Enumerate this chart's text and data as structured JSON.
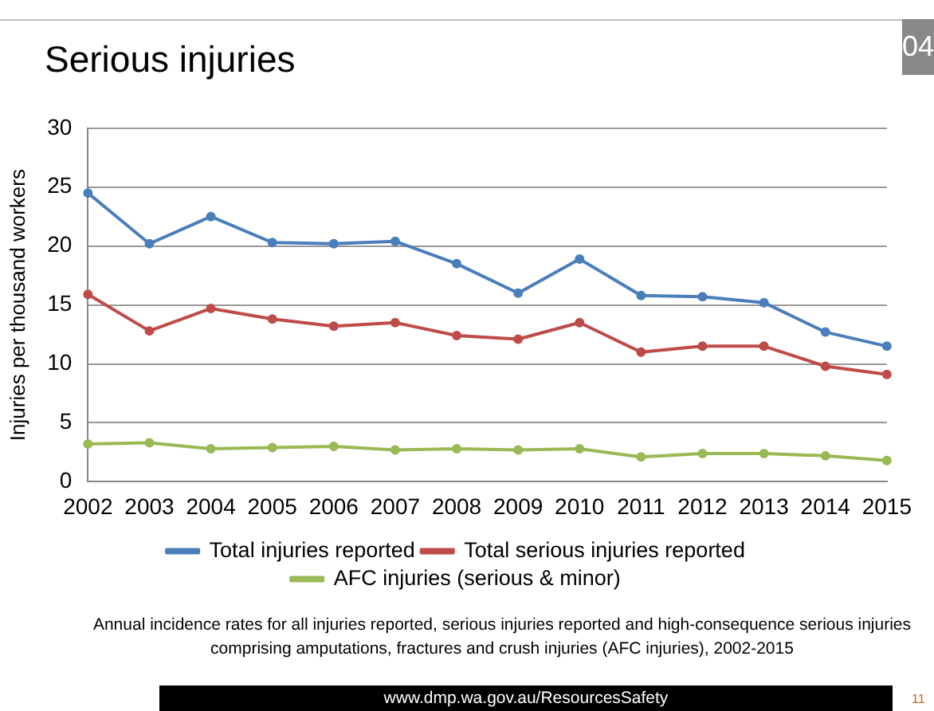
{
  "chart_data": {
    "type": "line",
    "title": "Serious injuries",
    "ylabel": "Injuries per thousand workers",
    "categories": [
      "2002",
      "2003",
      "2004",
      "2005",
      "2006",
      "2007",
      "2008",
      "2009",
      "2010",
      "2011",
      "2012",
      "2013",
      "2014",
      "2015"
    ],
    "series": [
      {
        "name": "Total injuries reported",
        "color": "#4a7ebb",
        "values": [
          24.5,
          20.2,
          22.5,
          20.3,
          20.2,
          20.4,
          18.5,
          16.0,
          18.9,
          15.8,
          15.7,
          15.2,
          12.7,
          11.5
        ]
      },
      {
        "name": "Total serious injuries reported",
        "color": "#be4b48",
        "values": [
          15.9,
          12.8,
          14.7,
          13.8,
          13.2,
          13.5,
          12.4,
          12.1,
          13.5,
          11.0,
          11.5,
          11.5,
          9.8,
          9.1
        ]
      },
      {
        "name": "AFC injuries (serious & minor)",
        "color": "#98b954",
        "values": [
          3.2,
          3.3,
          2.8,
          2.9,
          3.0,
          2.7,
          2.8,
          2.7,
          2.8,
          2.1,
          2.4,
          2.4,
          2.2,
          1.8
        ]
      }
    ],
    "ylim": [
      0,
      30
    ],
    "yticks": [
      0,
      5,
      10,
      15,
      20,
      25,
      30
    ],
    "grid": "y",
    "legend": "bottom",
    "marker": "circle",
    "line_style": "solid",
    "annotations": [
      "Annual incidence rates for all injuries reported, serious injuries reported and high-consequence serious injuries comprising amputations, fractures and crush injuries (AFC injuries), 2002-2015",
      "www.dmp.wa.gov.au/ResourcesSafety",
      "04",
      "11"
    ]
  }
}
